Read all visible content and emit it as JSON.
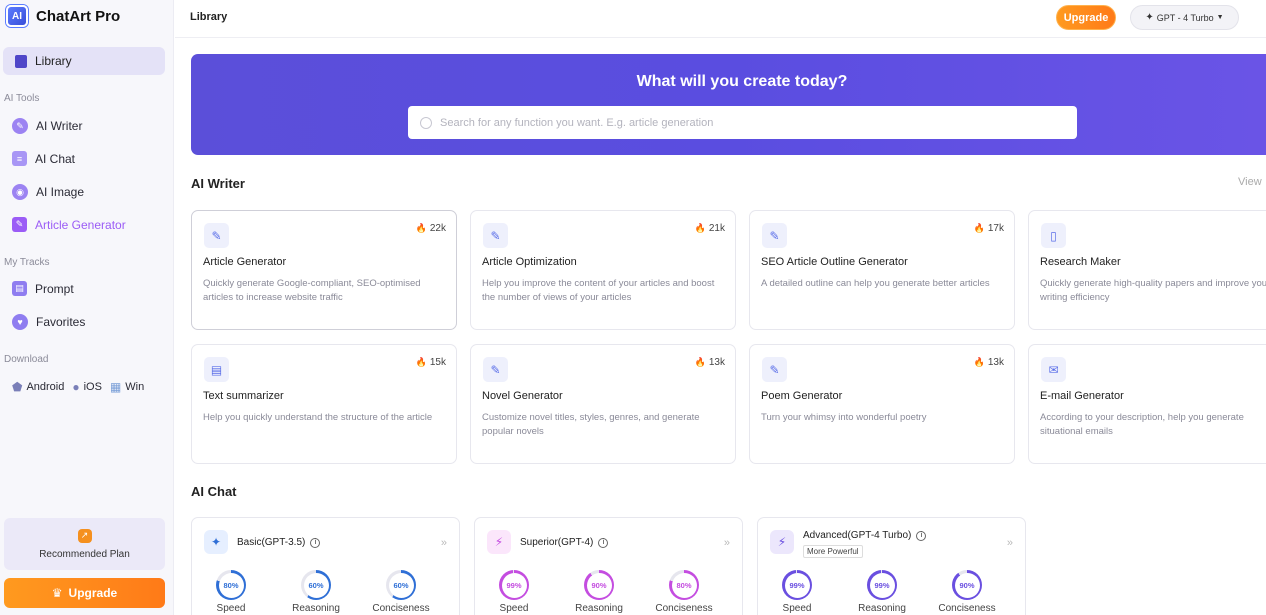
{
  "brand": {
    "logo_text": "AI",
    "name": "ChatArt Pro"
  },
  "sidebar": {
    "library_label": "Library",
    "section_ai_tools": "AI Tools",
    "ai_tools": [
      {
        "label": "AI Writer",
        "icon": "writer-icon",
        "color": "#8b6cf0"
      },
      {
        "label": "AI Chat",
        "icon": "chat-icon",
        "color": "#9b8cf5"
      },
      {
        "label": "AI Image",
        "icon": "image-icon",
        "color": "#8b6cf0"
      },
      {
        "label": "Article Generator",
        "icon": "article-icon",
        "color": "#9b5cf6"
      }
    ],
    "section_tracks": "My Tracks",
    "tracks": [
      {
        "label": "Prompt",
        "icon": "prompt-icon"
      },
      {
        "label": "Favorites",
        "icon": "favorites-icon"
      }
    ],
    "section_download": "Download",
    "downloads": [
      "Android",
      "iOS",
      "Win"
    ],
    "recommended_plan": "Recommended Plan",
    "upgrade": "Upgrade"
  },
  "header": {
    "title": "Library",
    "upgrade": "Upgrade",
    "model": "GPT - 4 Turbo"
  },
  "hero": {
    "title": "What will you create today?",
    "search_placeholder": "Search for any function you want. E.g. article generation"
  },
  "ai_writer": {
    "title": "AI Writer",
    "view_link": "View",
    "cards": [
      {
        "title": "Article Generator",
        "count": "22k",
        "desc": "Quickly generate Google-compliant, SEO-optimised articles to increase website traffic"
      },
      {
        "title": "Article Optimization",
        "count": "21k",
        "desc": "Help you improve the content of your articles and boost the number of views of your articles"
      },
      {
        "title": "SEO Article Outline Generator",
        "count": "17k",
        "desc": "A detailed outline can help you generate better articles"
      },
      {
        "title": "Research Maker",
        "count": "",
        "desc": "Quickly generate high-quality papers and improve your writing efficiency"
      },
      {
        "title": "Text summarizer",
        "count": "15k",
        "desc": "Help you quickly understand the structure of the article"
      },
      {
        "title": "Novel Generator",
        "count": "13k",
        "desc": "Customize novel titles, styles, genres, and generate popular novels"
      },
      {
        "title": "Poem Generator",
        "count": "13k",
        "desc": "Turn your whimsy into wonderful poetry"
      },
      {
        "title": "E-mail Generator",
        "count": "",
        "desc": "According to your description, help you generate situational emails"
      }
    ]
  },
  "ai_chat": {
    "title": "AI Chat",
    "metric_labels": [
      "Speed",
      "Reasoning",
      "Conciseness"
    ],
    "plans": [
      {
        "name": "Basic(GPT-3.5)",
        "badge": "",
        "metrics": [
          "80%",
          "60%",
          "60%"
        ],
        "values": [
          80,
          60,
          60
        ],
        "color": "#2f6fd6",
        "icon_bg": "#e6efff",
        "icon_color": "#2f6fd6"
      },
      {
        "name": "Superior(GPT-4)",
        "badge": "",
        "metrics": [
          "99%",
          "90%",
          "80%"
        ],
        "values": [
          99,
          90,
          80
        ],
        "color": "#c44de0",
        "icon_bg": "#fbe6fb",
        "icon_color": "#c44de0"
      },
      {
        "name": "Advanced(GPT-4 Turbo)",
        "badge": "More Powerful",
        "metrics": [
          "99%",
          "99%",
          "90%"
        ],
        "values": [
          99,
          99,
          90
        ],
        "color": "#6a4fe0",
        "icon_bg": "#ece7fc",
        "icon_color": "#6a4fe0"
      }
    ]
  }
}
